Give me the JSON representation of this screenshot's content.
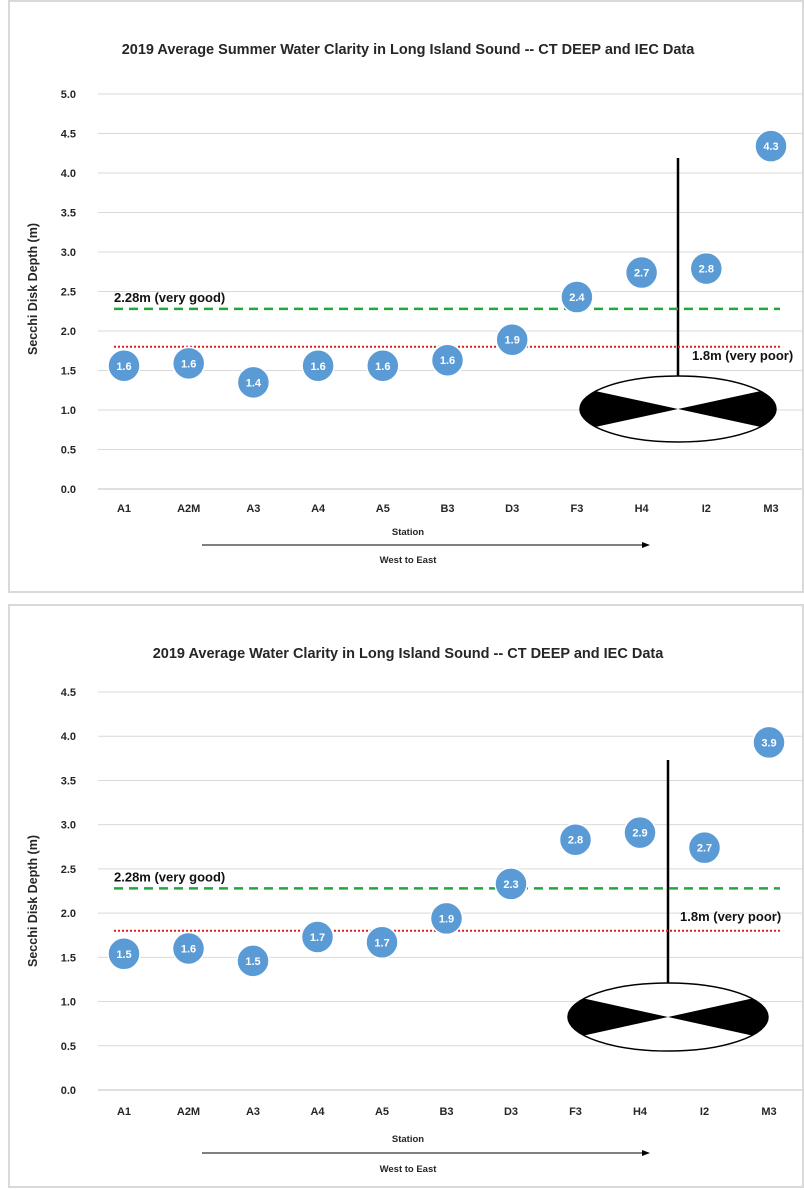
{
  "chart_data": [
    {
      "type": "scatter",
      "title": "2019 Average Summer Water Clarity in Long Island Sound -- CT DEEP and IEC Data",
      "xlabel": "Station",
      "direction_label": "West to East",
      "ylabel": "Secchi Disk Depth (m)",
      "ylim": [
        0,
        5.0
      ],
      "ytick_step": 0.5,
      "grid": true,
      "categories": [
        "A1",
        "A2M",
        "A3",
        "A4",
        "A5",
        "B3",
        "D3",
        "F3",
        "H4",
        "I2",
        "M3"
      ],
      "values": [
        1.56,
        1.59,
        1.35,
        1.56,
        1.56,
        1.63,
        1.89,
        2.43,
        2.74,
        2.79,
        4.34
      ],
      "labels": [
        "1.6",
        "1.6",
        "1.4",
        "1.6",
        "1.6",
        "1.6",
        "1.9",
        "2.4",
        "2.7",
        "2.8",
        "4.3"
      ],
      "reference_lines": [
        {
          "value": 2.28,
          "label": "2.28m (very good)",
          "color": "#22a83a",
          "style": "dashed"
        },
        {
          "value": 1.8,
          "label": "1.8m (very poor)",
          "color": "#e11d1d",
          "style": "dotted"
        }
      ],
      "marker_color": "#5b9bd5"
    },
    {
      "type": "scatter",
      "title": "2019 Average Water Clarity in Long Island Sound -- CT DEEP and IEC Data",
      "xlabel": "Station",
      "direction_label": "West to East",
      "ylabel": "Secchi Disk Depth (m)",
      "ylim": [
        0,
        4.5
      ],
      "ytick_step": 0.5,
      "grid": true,
      "categories": [
        "A1",
        "A2M",
        "A3",
        "A4",
        "A5",
        "B3",
        "D3",
        "F3",
        "H4",
        "I2",
        "M3"
      ],
      "values": [
        1.54,
        1.6,
        1.46,
        1.73,
        1.67,
        1.94,
        2.33,
        2.83,
        2.91,
        2.74,
        3.93
      ],
      "labels": [
        "1.5",
        "1.6",
        "1.5",
        "1.7",
        "1.7",
        "1.9",
        "2.3",
        "2.8",
        "2.9",
        "2.7",
        "3.9"
      ],
      "reference_lines": [
        {
          "value": 2.28,
          "label": "2.28m (very good)",
          "color": "#22a83a",
          "style": "dashed"
        },
        {
          "value": 1.8,
          "label": "1.8m (very poor)",
          "color": "#e11d1d",
          "style": "dotted"
        }
      ],
      "marker_color": "#5b9bd5"
    }
  ]
}
